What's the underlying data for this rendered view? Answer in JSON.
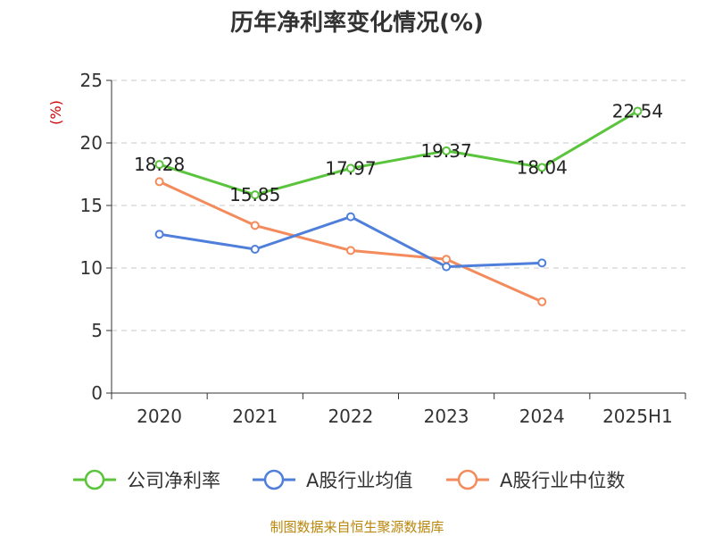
{
  "chart_data": {
    "type": "line",
    "title": "历年净利率变化情况(%)",
    "ylabel": "(%)",
    "xlabel": "",
    "ylim": [
      0,
      25
    ],
    "yticks": [
      0,
      5,
      10,
      15,
      20,
      25
    ],
    "categories": [
      "2020",
      "2021",
      "2022",
      "2023",
      "2024",
      "2025H1"
    ],
    "grid": "horizontal-dashed",
    "legend_position": "bottom",
    "series": [
      {
        "name": "公司净利率",
        "color": "#5ac43c",
        "values": [
          18.28,
          15.85,
          17.97,
          19.37,
          18.04,
          22.54
        ],
        "labels": [
          "18.28",
          "15.85",
          "17.97",
          "19.37",
          "18.04",
          "22.54"
        ]
      },
      {
        "name": "A股行业均值",
        "color": "#4f7fdb",
        "values": [
          12.7,
          11.5,
          14.1,
          10.1,
          10.4,
          null
        ]
      },
      {
        "name": "A股行业中位数",
        "color": "#f48b5c",
        "values": [
          16.9,
          13.4,
          11.4,
          10.7,
          7.3,
          null
        ]
      }
    ],
    "source": "制图数据来自恒生聚源数据库"
  }
}
